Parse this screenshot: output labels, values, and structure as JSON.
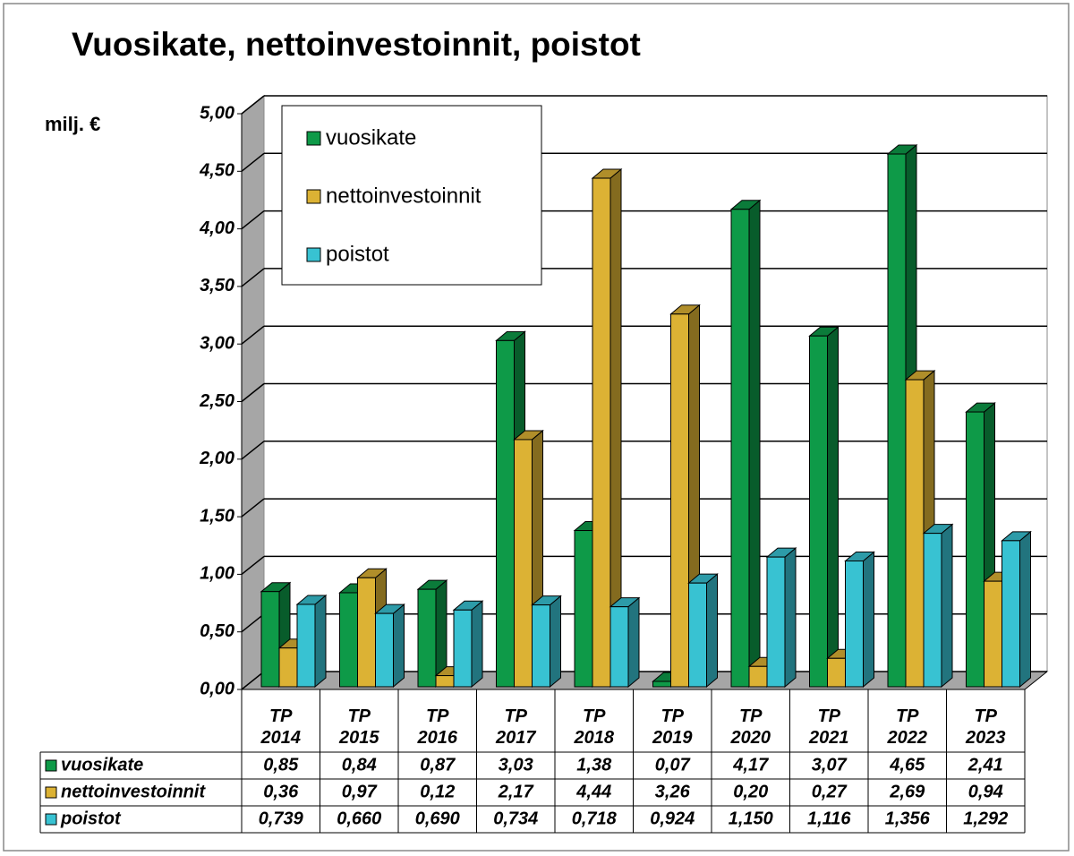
{
  "chart_data": {
    "type": "bar3d",
    "title": "Vuosikate, nettoinvestoinnit, poistot",
    "y_label": "milj. €",
    "categories": [
      "TP 2014",
      "TP 2015",
      "TP 2016",
      "TP 2017",
      "TP 2018",
      "TP 2019",
      "TP 2020",
      "TP 2021",
      "TP 2022",
      "TP 2023"
    ],
    "series": [
      {
        "name": "vuosikate",
        "color": "#0e9a48",
        "values": [
          0.85,
          0.84,
          0.87,
          3.03,
          1.38,
          0.07,
          4.17,
          3.07,
          4.65,
          2.41
        ],
        "value_labels": [
          "0,85",
          "0,84",
          "0,87",
          "3,03",
          "1,38",
          "0,07",
          "4,17",
          "3,07",
          "4,65",
          "2,41"
        ]
      },
      {
        "name": "nettoinvestoinnit",
        "color": "#dcb234",
        "values": [
          0.36,
          0.97,
          0.12,
          2.17,
          4.44,
          3.26,
          0.2,
          0.27,
          2.69,
          0.94
        ],
        "value_labels": [
          "0,36",
          "0,97",
          "0,12",
          "2,17",
          "4,44",
          "3,26",
          "0,20",
          "0,27",
          "2,69",
          "0,94"
        ]
      },
      {
        "name": "poistot",
        "color": "#38c2d2",
        "values": [
          0.739,
          0.66,
          0.69,
          0.734,
          0.718,
          0.924,
          1.15,
          1.116,
          1.356,
          1.292
        ],
        "value_labels": [
          "0,739",
          "0,660",
          "0,690",
          "0,734",
          "0,718",
          "0,924",
          "1,150",
          "1,116",
          "1,356",
          "1,292"
        ]
      }
    ],
    "ylim": [
      0,
      5
    ],
    "yticks": [
      {
        "value": 0,
        "label": "0,00"
      },
      {
        "value": 0.5,
        "label": "0,50"
      },
      {
        "value": 1,
        "label": "1,00"
      },
      {
        "value": 1.5,
        "label": "1,50"
      },
      {
        "value": 2,
        "label": "2,00"
      },
      {
        "value": 2.5,
        "label": "2,50"
      },
      {
        "value": 3,
        "label": "3,00"
      },
      {
        "value": 3.5,
        "label": "3,50"
      },
      {
        "value": 4,
        "label": "4,00"
      },
      {
        "value": 4.5,
        "label": "4,50"
      },
      {
        "value": 5,
        "label": "5,00"
      }
    ],
    "grid": true
  }
}
